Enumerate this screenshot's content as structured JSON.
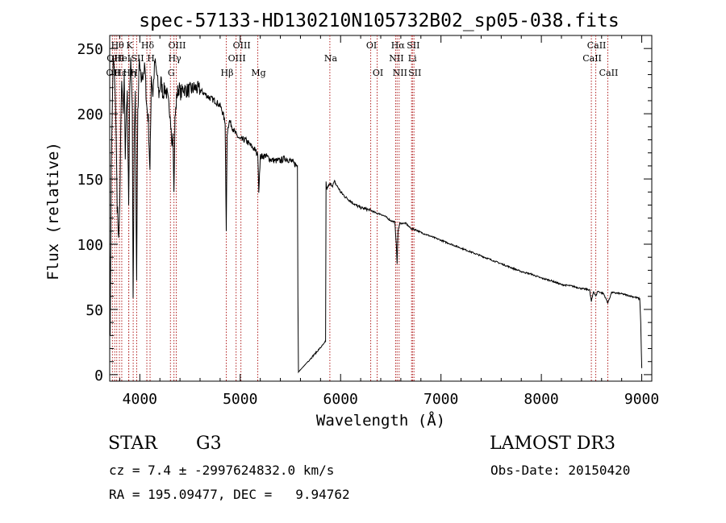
{
  "chart_data": {
    "type": "line",
    "title": "spec-57133-HD130210N105732B02_sp05-038.fits",
    "xlabel": "Wavelength (Å)",
    "ylabel": "Flux (relative)",
    "xlim": [
      3700,
      9100
    ],
    "ylim": [
      -5,
      260
    ],
    "xticks": [
      4000,
      5000,
      6000,
      7000,
      8000,
      9000
    ],
    "yticks": [
      0,
      50,
      100,
      150,
      200,
      250
    ],
    "series": [
      {
        "name": "spectrum",
        "x": [
          3700,
          3705,
          3715,
          3725,
          3735,
          3745,
          3755,
          3765,
          3775,
          3790,
          3800,
          3810,
          3820,
          3830,
          3835,
          3845,
          3855,
          3865,
          3875,
          3889,
          3900,
          3910,
          3925,
          3933,
          3945,
          3955,
          3968,
          3980,
          3995,
          4010,
          4030,
          4050,
          4070,
          4085,
          4101,
          4115,
          4130,
          4150,
          4170,
          4190,
          4210,
          4230,
          4250,
          4270,
          4290,
          4305,
          4320,
          4330,
          4340,
          4350,
          4370,
          4390,
          4410,
          4430,
          4460,
          4500,
          4550,
          4600,
          4650,
          4700,
          4750,
          4800,
          4830,
          4850,
          4861,
          4870,
          4890,
          4920,
          4950,
          5000,
          5050,
          5100,
          5150,
          5175,
          5185,
          5200,
          5250,
          5300,
          5350,
          5400,
          5450,
          5500,
          5550,
          5570,
          5575,
          5580,
          5850,
          5855,
          5860,
          5880,
          5900,
          5920,
          5940,
          5960,
          5980,
          6000,
          6050,
          6100,
          6150,
          6200,
          6250,
          6300,
          6350,
          6400,
          6450,
          6500,
          6540,
          6555,
          6563,
          6572,
          6590,
          6650,
          6700,
          6750,
          6800,
          6900,
          7000,
          7100,
          7200,
          7300,
          7400,
          7500,
          7600,
          7700,
          7800,
          7900,
          8000,
          8100,
          8200,
          8300,
          8400,
          8480,
          8498,
          8520,
          8542,
          8560,
          8620,
          8662,
          8700,
          8800,
          8900,
          8950,
          8980,
          8990,
          9000
        ],
        "y": [
          100,
          30,
          160,
          200,
          245,
          235,
          215,
          180,
          130,
          105,
          130,
          190,
          225,
          210,
          200,
          230,
          165,
          200,
          215,
          130,
          220,
          240,
          205,
          55,
          185,
          215,
          70,
          200,
          240,
          225,
          230,
          235,
          205,
          195,
          155,
          230,
          215,
          240,
          230,
          215,
          225,
          215,
          220,
          215,
          205,
          200,
          175,
          185,
          140,
          195,
          215,
          220,
          215,
          220,
          218,
          218,
          220,
          218,
          215,
          212,
          210,
          206,
          200,
          192,
          110,
          185,
          195,
          190,
          185,
          180,
          180,
          176,
          172,
          168,
          142,
          167,
          168,
          165,
          164,
          164,
          166,
          164,
          161,
          160,
          60,
          2,
          25,
          148,
          142,
          145,
          146,
          145,
          148,
          145,
          143,
          140,
          136,
          133,
          130,
          128,
          127,
          126,
          124,
          123,
          121,
          118,
          117,
          100,
          85,
          110,
          116,
          116,
          112,
          111,
          109,
          106,
          103,
          100,
          97,
          94,
          91,
          88,
          85,
          82,
          79,
          77,
          74,
          72,
          69,
          68,
          66,
          65,
          56,
          64,
          60,
          64,
          62,
          55,
          63,
          62,
          60,
          59,
          58,
          40,
          5
        ]
      }
    ],
    "lines": [
      {
        "wave": 3727,
        "label": "OII",
        "row": 2
      },
      {
        "wave": 3750,
        "label": "OIII",
        "row": 1
      },
      {
        "wave": 3770,
        "label": "Hθ",
        "row": 0
      },
      {
        "wave": 3797,
        "label": "Hε",
        "row": 2
      },
      {
        "wave": 3820,
        "label": "HeI",
        "row": 1
      },
      {
        "wave": 3889,
        "label": "Hη",
        "row": 2
      },
      {
        "wave": 3890,
        "label": "K",
        "row": 0
      },
      {
        "wave": 3934,
        "label": "H",
        "row": 2
      },
      {
        "wave": 3969,
        "label": "SII",
        "row": 1
      },
      {
        "wave": 4070,
        "label": "Hδ",
        "row": 0
      },
      {
        "wave": 4102,
        "label": "H",
        "row": 1
      },
      {
        "wave": 4305,
        "label": "G",
        "row": 2
      },
      {
        "wave": 4340,
        "label": "Hγ",
        "row": 1
      },
      {
        "wave": 4363,
        "label": "OIII",
        "row": 0
      },
      {
        "wave": 4861,
        "label": "Hβ",
        "row": 2
      },
      {
        "wave": 4959,
        "label": "OIII",
        "row": 1
      },
      {
        "wave": 5007,
        "label": "OIII",
        "row": 0
      },
      {
        "wave": 5175,
        "label": "Mg",
        "row": 2
      },
      {
        "wave": 5893,
        "label": "Na",
        "row": 1
      },
      {
        "wave": 6300,
        "label": "OI",
        "row": 0
      },
      {
        "wave": 6364,
        "label": "OI",
        "row": 2
      },
      {
        "wave": 6548,
        "label": "NII",
        "row": 1
      },
      {
        "wave": 6563,
        "label": "Hα",
        "row": 0
      },
      {
        "wave": 6583,
        "label": "NII",
        "row": 2
      },
      {
        "wave": 6707,
        "label": "Li",
        "row": 1
      },
      {
        "wave": 6716,
        "label": "SII",
        "row": 0
      },
      {
        "wave": 6731,
        "label": "SII",
        "row": 2
      },
      {
        "wave": 8498,
        "label": "CaII",
        "row": 1
      },
      {
        "wave": 8542,
        "label": "CaII",
        "row": 0
      },
      {
        "wave": 8662,
        "label": "CaII",
        "row": 2
      }
    ]
  },
  "info": {
    "class": "STAR",
    "subclass": "G3",
    "cz": "cz = 7.4 ± -2997624832.0 km/s",
    "radec": "RA = 195.09477, DEC =   9.94762",
    "survey": "LAMOST DR3",
    "obsdate": "Obs-Date: 20150420"
  }
}
